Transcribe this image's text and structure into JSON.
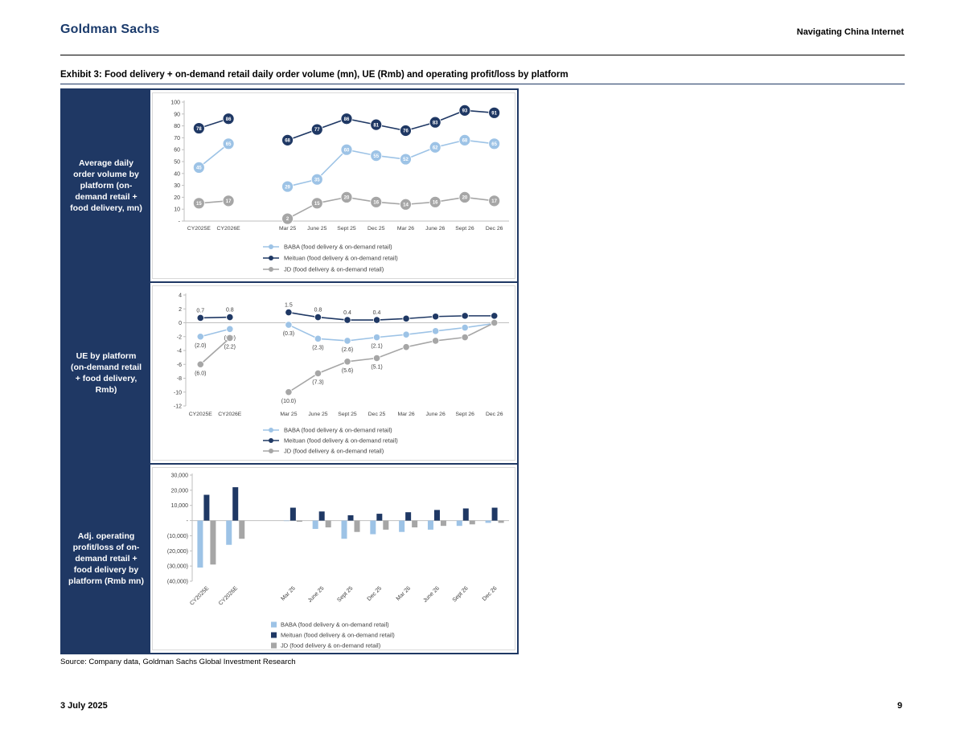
{
  "header": {
    "brand": "Goldman Sachs",
    "doc_title": "Navigating China Internet"
  },
  "exhibit": {
    "title": "Exhibit 3: Food delivery + on-demand retail daily order volume (mn), UE (Rmb) and operating profit/loss by platform"
  },
  "rows": [
    {
      "label": "Average daily order volume by platform (on-demand retail + food delivery, mn)"
    },
    {
      "label": "UE by platform (on-demand retail + food delivery, Rmb)"
    },
    {
      "label": "Adj. operating profit/loss of on-demand retail + food delivery by platform (Rmb mn)"
    }
  ],
  "colors": {
    "navy": "#1f3864",
    "baba_blue": "#9dc3e6",
    "meituan_navy": "#1f3864",
    "jd_gray": "#a6a6a6",
    "axis_gray": "#bfbfbf",
    "frame_gray": "#d9d9d9",
    "label_text": "#404040"
  },
  "chart_data": [
    {
      "type": "line",
      "title": "Average daily order volume by platform (on-demand retail + food delivery, mn)",
      "categories": [
        "CY2025E",
        "CY2026E",
        "",
        "Mar 25",
        "June 25",
        "Sept 25",
        "Dec 25",
        "Mar 26",
        "June 26",
        "Sept 26",
        "Dec 26"
      ],
      "ylim": [
        0,
        100
      ],
      "yticks": [
        [
          100,
          "100"
        ],
        [
          90,
          "90"
        ],
        [
          80,
          "80"
        ],
        [
          70,
          "70"
        ],
        [
          60,
          "60"
        ],
        [
          50,
          "50"
        ],
        [
          40,
          "40"
        ],
        [
          30,
          "30"
        ],
        [
          20,
          "20"
        ],
        [
          10,
          "10"
        ],
        [
          0,
          "-"
        ]
      ],
      "legend_position": "bottom",
      "grid": false,
      "series": [
        {
          "name": "BABA (food delivery & on-demand retail)",
          "color": "#9dc3e6",
          "values": [
            45,
            65,
            null,
            29,
            35,
            60,
            55,
            52,
            62,
            68,
            65
          ]
        },
        {
          "name": "Meituan (food delivery & on-demand retail)",
          "color": "#1f3864",
          "values": [
            78,
            86,
            null,
            68,
            77,
            86,
            81,
            76,
            83,
            93,
            91
          ]
        },
        {
          "name": "JD (food delivery & on-demand retail)",
          "color": "#a6a6a6",
          "values": [
            15,
            17,
            null,
            2,
            15,
            20,
            16,
            14,
            16,
            20,
            17
          ]
        }
      ]
    },
    {
      "type": "line",
      "title": "UE by platform (on-demand retail + food delivery, Rmb)",
      "categories": [
        "CY2025E",
        "CY2026E",
        "",
        "Mar 25",
        "June 25",
        "Sept 25",
        "Dec 25",
        "Mar 26",
        "June 26",
        "Sept 26",
        "Dec 26"
      ],
      "ylim": [
        -12,
        4
      ],
      "yticks": [
        [
          4,
          "4"
        ],
        [
          2,
          "2"
        ],
        [
          0,
          "0"
        ],
        [
          -2,
          "-2"
        ],
        [
          -4,
          "-4"
        ],
        [
          -6,
          "-6"
        ],
        [
          -8,
          "-8"
        ],
        [
          -10,
          "-10"
        ],
        [
          -12,
          "-12"
        ]
      ],
      "legend_position": "bottom",
      "grid": false,
      "series": [
        {
          "name": "BABA (food delivery & on-demand retail)",
          "color": "#9dc3e6",
          "values": [
            -2.0,
            -0.9,
            null,
            -0.3,
            -2.3,
            -2.6,
            -2.1,
            -1.7,
            -1.2,
            -0.7,
            -0.1
          ],
          "labels": [
            "(2.0)",
            "(0.9)",
            "",
            "(0.3)",
            "(2.3)",
            "(2.6)",
            "(2.1)",
            "",
            "",
            "",
            ""
          ]
        },
        {
          "name": "Meituan (food delivery & on-demand retail)",
          "color": "#1f3864",
          "values": [
            0.7,
            0.8,
            null,
            1.5,
            0.8,
            0.4,
            0.4,
            0.6,
            0.9,
            1.0,
            1.0
          ],
          "labels": [
            "0.7",
            "0.8",
            "",
            "1.5",
            "0.8",
            "0.4",
            "0.4",
            "",
            "",
            "",
            ""
          ]
        },
        {
          "name": "JD (food delivery & on-demand retail)",
          "color": "#a6a6a6",
          "values": [
            -6.0,
            -2.2,
            null,
            -10.0,
            -7.3,
            -5.6,
            -5.1,
            -3.5,
            -2.6,
            -2.1,
            0.0
          ],
          "labels": [
            "(6.0)",
            "(2.2)",
            "",
            "(10.0)",
            "(7.3)",
            "(5.6)",
            "(5.1)",
            "",
            "",
            "",
            ""
          ]
        }
      ]
    },
    {
      "type": "bar",
      "title": "Adj. operating profit/loss of on-demand retail + food delivery by platform (Rmb mn)",
      "categories": [
        "CY2025E",
        "CY2026E",
        "",
        "Mar 25",
        "June 25",
        "Sept 25",
        "Dec 25",
        "Mar 26",
        "June 26",
        "Sept 26",
        "Dec 26"
      ],
      "ylim": [
        -40000,
        30000
      ],
      "yticks": [
        [
          30000,
          "30,000"
        ],
        [
          20000,
          "20,000"
        ],
        [
          10000,
          "10,000"
        ],
        [
          0,
          "-"
        ],
        [
          -10000,
          "(10,000)"
        ],
        [
          -20000,
          "(20,000)"
        ],
        [
          -30000,
          "(30,000)"
        ],
        [
          -40000,
          "(40,000)"
        ]
      ],
      "legend_position": "bottom",
      "grid": false,
      "series": [
        {
          "name": "BABA (food delivery & on-demand retail)",
          "color": "#9dc3e6",
          "values": [
            -31000,
            -16000,
            null,
            -300,
            -5500,
            -12000,
            -9000,
            -7500,
            -6000,
            -3500,
            -1500
          ]
        },
        {
          "name": "Meituan (food delivery & on-demand retail)",
          "color": "#1f3864",
          "values": [
            17000,
            22000,
            null,
            8500,
            6000,
            3500,
            4500,
            5500,
            7000,
            8000,
            8500
          ]
        },
        {
          "name": "JD (food delivery & on-demand retail)",
          "color": "#a6a6a6",
          "values": [
            -29000,
            -12000,
            null,
            -800,
            -4500,
            -7500,
            -6000,
            -4500,
            -3500,
            -2500,
            -1500
          ]
        }
      ]
    }
  ],
  "source": "Source: Company data, Goldman Sachs Global Investment Research",
  "footer": {
    "date": "3 July 2025",
    "page": "9"
  }
}
